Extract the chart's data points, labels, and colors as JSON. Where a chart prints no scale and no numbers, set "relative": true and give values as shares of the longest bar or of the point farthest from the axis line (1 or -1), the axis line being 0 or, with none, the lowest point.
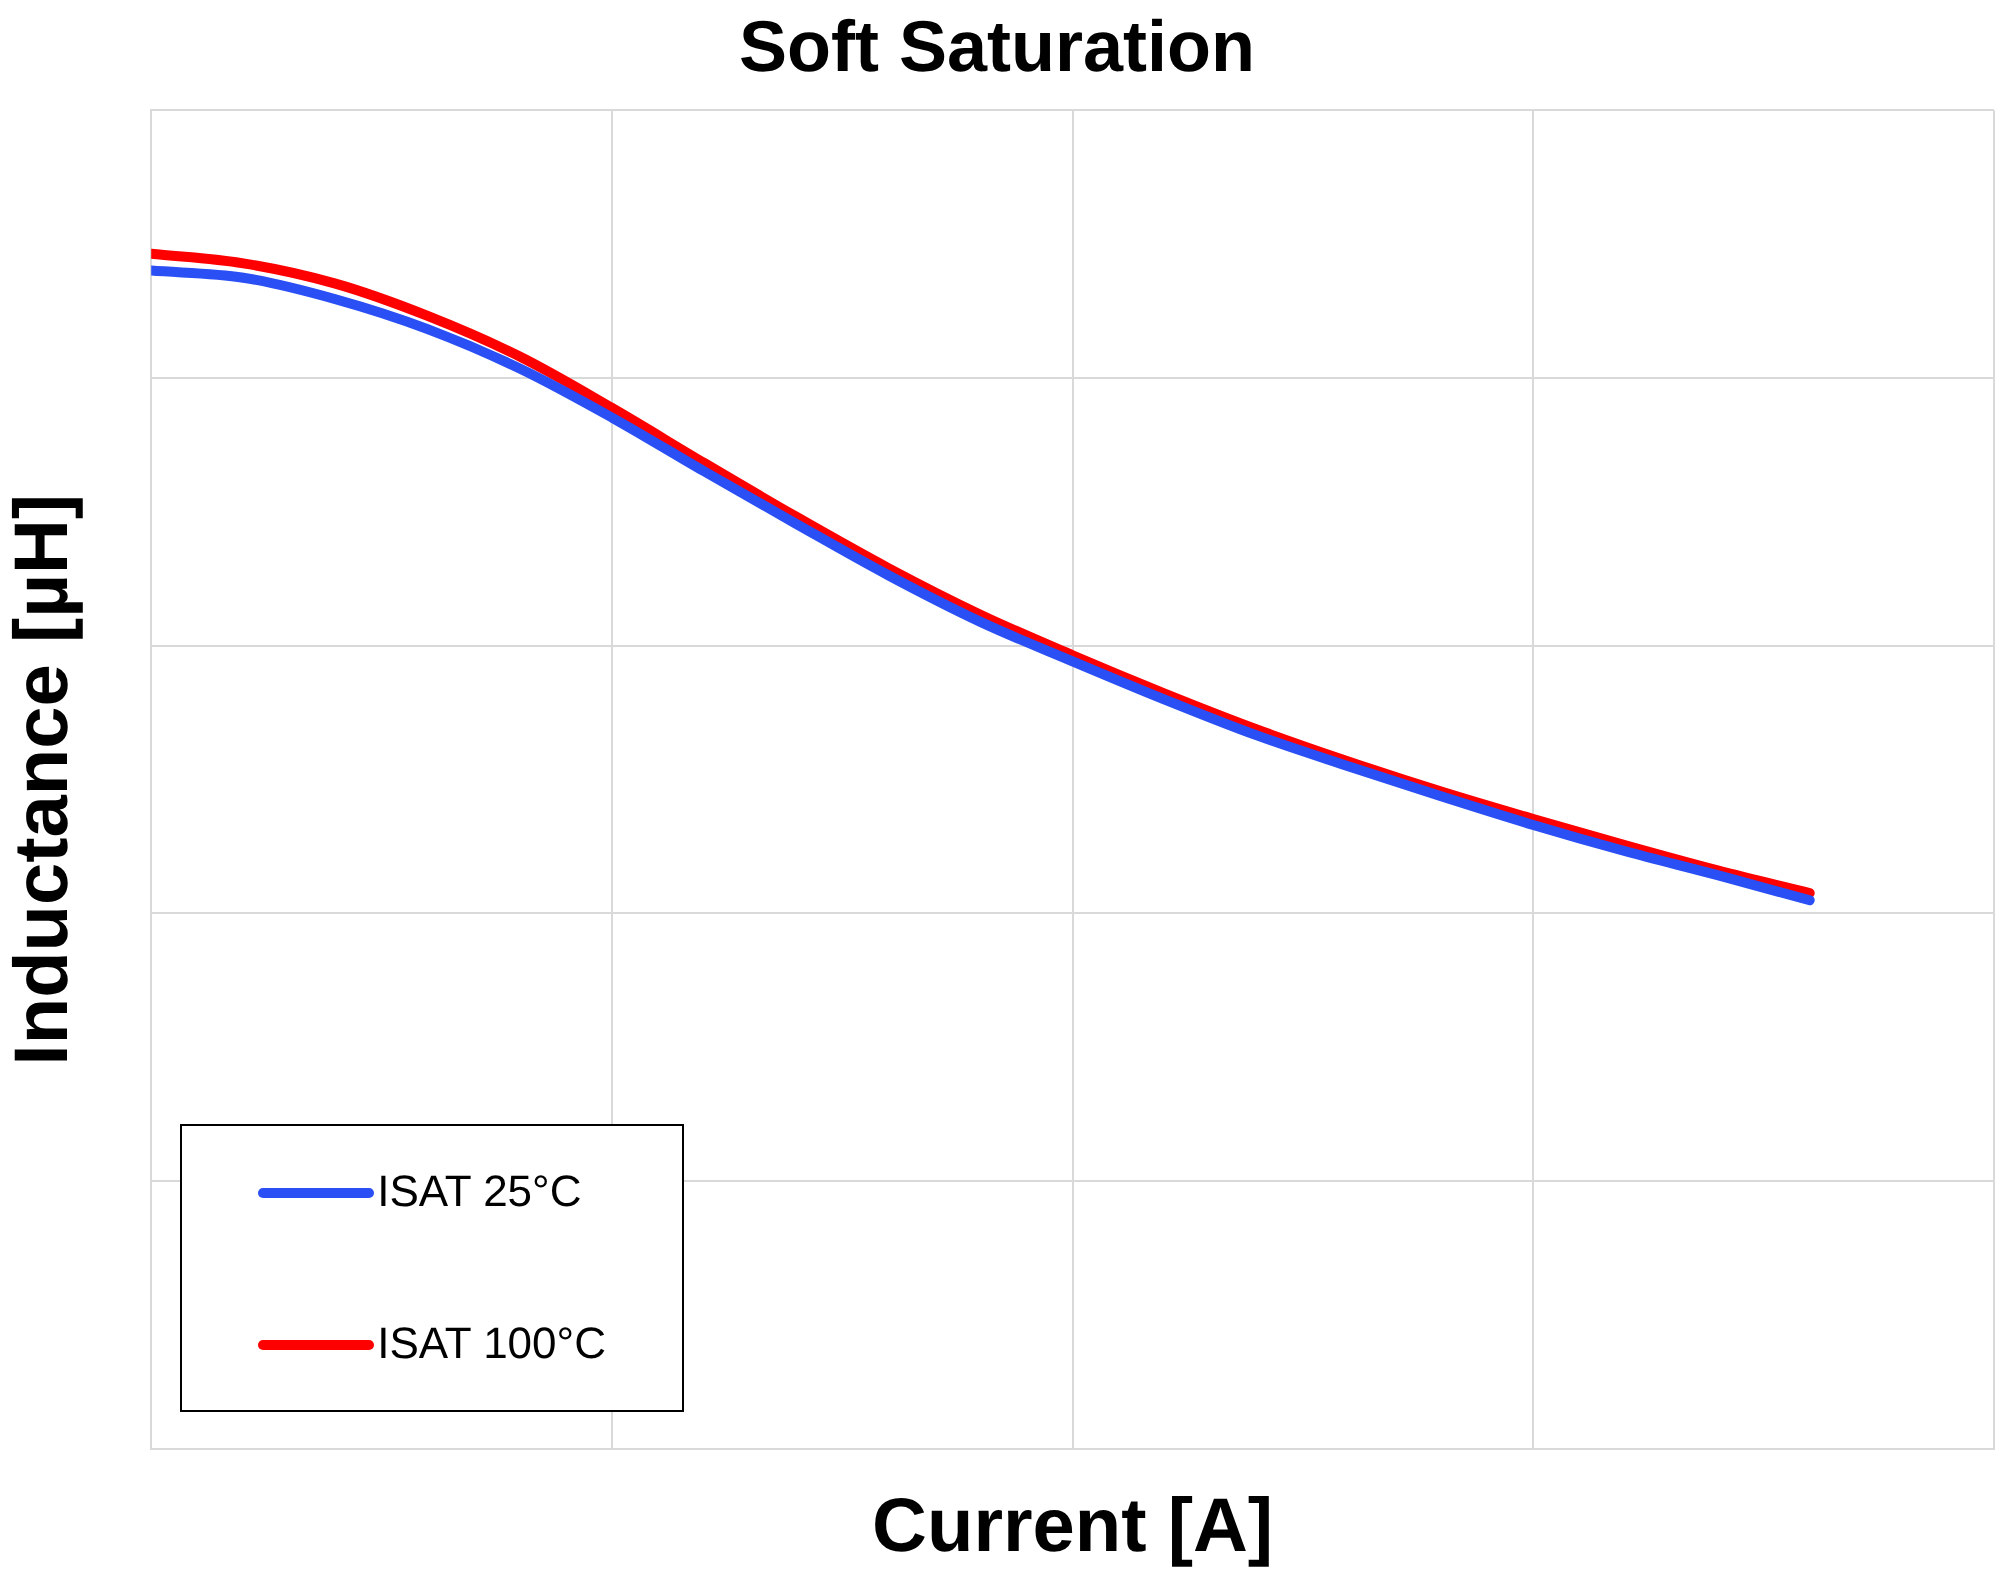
{
  "chart_data": {
    "type": "line",
    "title": "Soft Saturation",
    "xlabel": "Current [A]",
    "ylabel": "Inductance [µH]",
    "relative": true,
    "tick_labels": false,
    "grid": true,
    "legend": "bottom left",
    "marker": "none",
    "line_style": "solid",
    "categories": [
      null,
      null,
      null,
      null,
      null,
      null,
      null,
      null,
      null,
      null,
      null,
      null,
      null,
      null,
      null,
      null,
      null,
      null,
      null,
      null,
      null
    ],
    "series": [
      {
        "name": "ISAT 25°C",
        "color": "#2a4ff5",
        "values": [
          0.986,
          0.98,
          0.962,
          0.937,
          0.904,
          0.863,
          0.818,
          0.774,
          0.731,
          0.692,
          0.659,
          0.627,
          0.597,
          0.571,
          0.546,
          0.522,
          0.5,
          0.48,
          0.459,
          null,
          null
        ]
      },
      {
        "name": "ISAT 100°C",
        "color": "#ff0000",
        "values": [
          1,
          0.992,
          0.975,
          0.948,
          0.914,
          0.871,
          0.825,
          0.78,
          0.737,
          0.698,
          0.664,
          0.632,
          0.602,
          0.575,
          0.55,
          0.527,
          0.505,
          0.484,
          0.465,
          null,
          null
        ]
      }
    ]
  }
}
